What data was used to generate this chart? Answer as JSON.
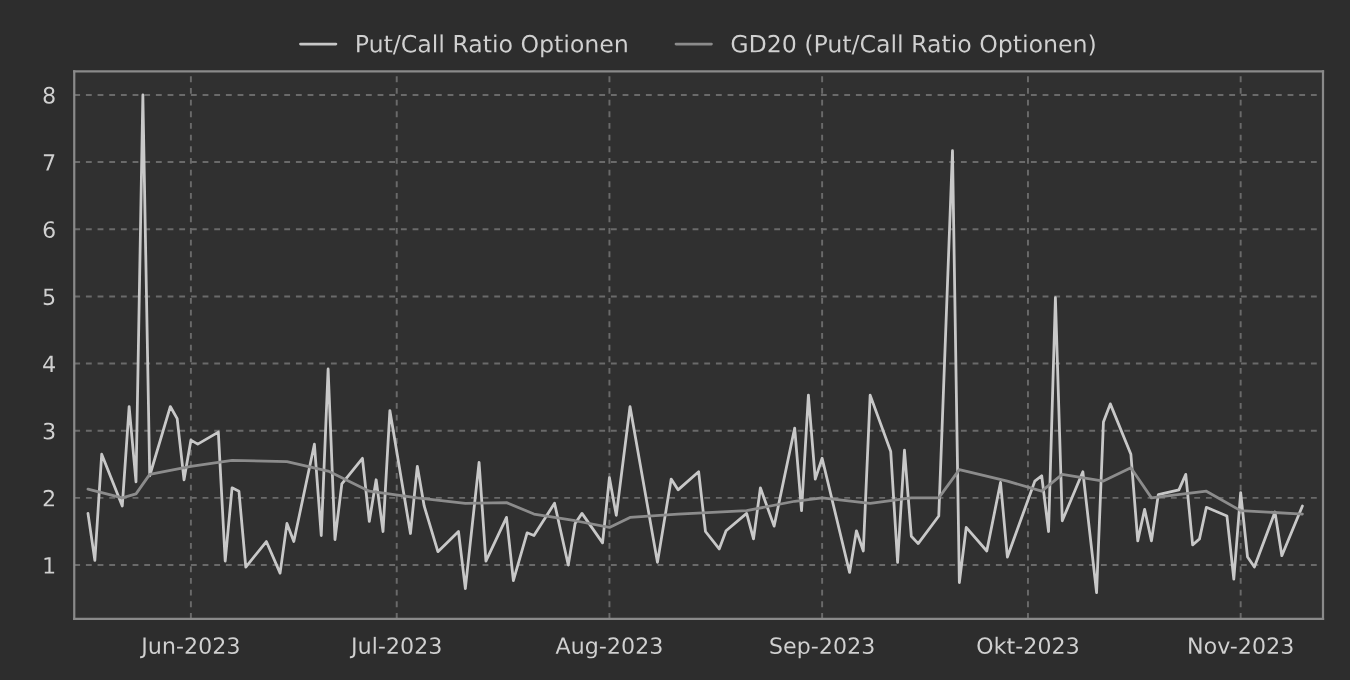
{
  "chart_data": {
    "type": "line",
    "legend": "top",
    "grid": true,
    "line_style": "solid",
    "xlim": [
      "2023-05-15",
      "2023-11-13"
    ],
    "xticks": [
      {
        "value": "2023-06-01",
        "label": "Jun-2023"
      },
      {
        "value": "2023-07-01",
        "label": "Jul-2023"
      },
      {
        "value": "2023-08-01",
        "label": "Aug-2023"
      },
      {
        "value": "2023-09-01",
        "label": "Sep-2023"
      },
      {
        "value": "2023-10-01",
        "label": "Okt-2023"
      },
      {
        "value": "2023-11-01",
        "label": "Nov-2023"
      }
    ],
    "ylim": [
      0.2,
      8.35
    ],
    "yticks": [
      1,
      2,
      3,
      4,
      5,
      6,
      7,
      8
    ],
    "series": [
      {
        "name": "Put/Call Ratio Optionen",
        "color": "#c8c8c8",
        "x": [
          "2023-05-17",
          "2023-05-18",
          "2023-05-19",
          "2023-05-22",
          "2023-05-23",
          "2023-05-24",
          "2023-05-25",
          "2023-05-26",
          "2023-05-29",
          "2023-05-30",
          "2023-05-31",
          "2023-06-01",
          "2023-06-02",
          "2023-06-05",
          "2023-06-06",
          "2023-06-07",
          "2023-06-08",
          "2023-06-09",
          "2023-06-12",
          "2023-06-14",
          "2023-06-15",
          "2023-06-16",
          "2023-06-19",
          "2023-06-20",
          "2023-06-21",
          "2023-06-22",
          "2023-06-23",
          "2023-06-26",
          "2023-06-27",
          "2023-06-28",
          "2023-06-29",
          "2023-06-30",
          "2023-07-03",
          "2023-07-04",
          "2023-07-05",
          "2023-07-07",
          "2023-07-10",
          "2023-07-11",
          "2023-07-13",
          "2023-07-14",
          "2023-07-17",
          "2023-07-18",
          "2023-07-20",
          "2023-07-21",
          "2023-07-24",
          "2023-07-26",
          "2023-07-27",
          "2023-07-28",
          "2023-07-31",
          "2023-08-01",
          "2023-08-02",
          "2023-08-04",
          "2023-08-08",
          "2023-08-10",
          "2023-08-11",
          "2023-08-14",
          "2023-08-15",
          "2023-08-17",
          "2023-08-18",
          "2023-08-21",
          "2023-08-22",
          "2023-08-23",
          "2023-08-25",
          "2023-08-28",
          "2023-08-29",
          "2023-08-30",
          "2023-08-31",
          "2023-09-01",
          "2023-09-05",
          "2023-09-06",
          "2023-09-07",
          "2023-09-08",
          "2023-09-11",
          "2023-09-12",
          "2023-09-13",
          "2023-09-14",
          "2023-09-15",
          "2023-09-18",
          "2023-09-20",
          "2023-09-21",
          "2023-09-22",
          "2023-09-25",
          "2023-09-27",
          "2023-09-28",
          "2023-10-02",
          "2023-10-03",
          "2023-10-04",
          "2023-10-05",
          "2023-10-06",
          "2023-10-09",
          "2023-10-11",
          "2023-10-12",
          "2023-10-13",
          "2023-10-16",
          "2023-10-17",
          "2023-10-18",
          "2023-10-19",
          "2023-10-20",
          "2023-10-23",
          "2023-10-24",
          "2023-10-25",
          "2023-10-26",
          "2023-10-27",
          "2023-10-30",
          "2023-10-31",
          "2023-11-01",
          "2023-11-02",
          "2023-11-03",
          "2023-11-06",
          "2023-11-07",
          "2023-11-10"
        ],
        "values": [
          1.77,
          1.07,
          2.65,
          1.88,
          3.36,
          2.24,
          8.0,
          2.33,
          3.36,
          3.18,
          2.27,
          2.86,
          2.8,
          2.98,
          1.06,
          2.15,
          2.1,
          0.97,
          1.35,
          0.88,
          1.62,
          1.35,
          2.8,
          1.44,
          3.92,
          1.38,
          2.21,
          2.59,
          1.65,
          2.27,
          1.5,
          3.3,
          1.47,
          2.47,
          1.88,
          1.2,
          1.5,
          0.65,
          2.53,
          1.06,
          1.71,
          0.77,
          1.48,
          1.44,
          1.92,
          1.0,
          1.62,
          1.77,
          1.33,
          2.3,
          1.74,
          3.36,
          1.04,
          2.28,
          2.12,
          2.39,
          1.5,
          1.24,
          1.51,
          1.77,
          1.39,
          2.15,
          1.58,
          3.04,
          1.81,
          3.53,
          2.28,
          2.59,
          0.89,
          1.51,
          1.21,
          3.53,
          2.69,
          1.04,
          2.71,
          1.43,
          1.32,
          1.73,
          7.17,
          0.74,
          1.56,
          1.21,
          2.23,
          1.12,
          2.25,
          2.33,
          1.5,
          4.98,
          1.66,
          2.39,
          0.59,
          3.13,
          3.4,
          2.65,
          1.36,
          1.83,
          1.36,
          2.05,
          2.12,
          2.35,
          1.3,
          1.39,
          1.86,
          1.73,
          0.79,
          2.08,
          1.12,
          0.97,
          1.79,
          1.14,
          1.88
        ]
      },
      {
        "name": "GD20 (Put/Call Ratio Optionen)",
        "color": "#8c8c8c",
        "x": [
          "2023-05-17",
          "2023-05-22",
          "2023-05-24",
          "2023-05-26",
          "2023-06-01",
          "2023-06-07",
          "2023-06-15",
          "2023-06-21",
          "2023-06-27",
          "2023-07-04",
          "2023-07-11",
          "2023-07-17",
          "2023-07-21",
          "2023-07-27",
          "2023-08-01",
          "2023-08-04",
          "2023-08-11",
          "2023-08-21",
          "2023-08-28",
          "2023-09-01",
          "2023-09-08",
          "2023-09-14",
          "2023-09-18",
          "2023-09-21",
          "2023-09-28",
          "2023-10-03",
          "2023-10-06",
          "2023-10-12",
          "2023-10-16",
          "2023-10-19",
          "2023-10-27",
          "2023-11-01",
          "2023-11-10"
        ],
        "values": [
          2.13,
          2.0,
          2.06,
          2.35,
          2.47,
          2.56,
          2.54,
          2.4,
          2.1,
          2.0,
          1.92,
          1.93,
          1.76,
          1.66,
          1.56,
          1.71,
          1.76,
          1.81,
          1.95,
          2.0,
          1.92,
          2.0,
          2.0,
          2.42,
          2.25,
          2.1,
          2.35,
          2.25,
          2.45,
          2.0,
          2.1,
          1.81,
          1.76
        ]
      }
    ]
  }
}
